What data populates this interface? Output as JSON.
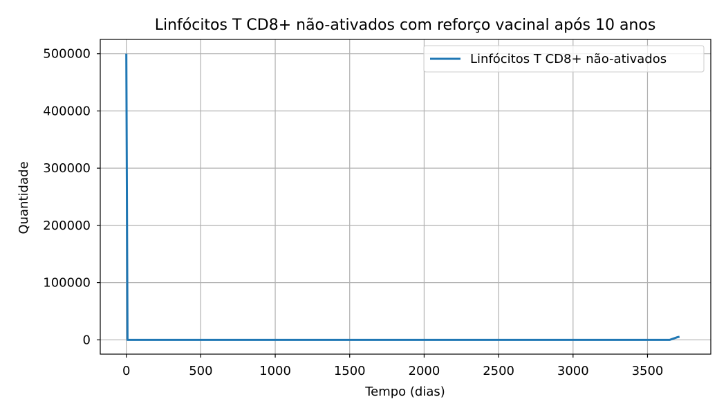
{
  "chart_data": {
    "type": "line",
    "title": "Linfócitos T CD8+ não-ativados com reforço vacinal após 10 anos",
    "xlabel": "Tempo (dias)",
    "ylabel": "Quantidade",
    "xlim": [
      -175,
      3925
    ],
    "ylim": [
      -25000,
      525000
    ],
    "xticks": [
      0,
      500,
      1000,
      1500,
      2000,
      2500,
      3000,
      3500
    ],
    "yticks": [
      0,
      100000,
      200000,
      300000,
      400000,
      500000
    ],
    "grid": true,
    "legend_position": "top-right",
    "series": [
      {
        "name": "Linfócitos T CD8+ não-ativados",
        "color": "#1f77b4",
        "x": [
          0,
          8,
          3650,
          3700,
          3715
        ],
        "y": [
          500000,
          0,
          0,
          4500,
          5500
        ]
      }
    ]
  }
}
